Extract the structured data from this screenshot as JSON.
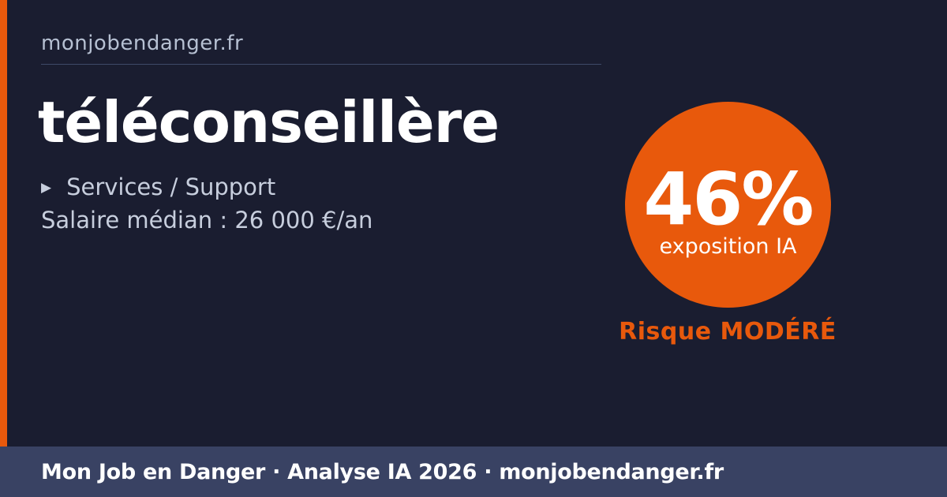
{
  "card": {
    "site_domain": "monjobendanger.fr",
    "job": {
      "title": "téléconseillère",
      "category": "Services / Support",
      "salary_line": "Salaire médian : 26 000 €/an"
    },
    "exposure": {
      "percent": "46%",
      "label": "exposition IA",
      "risk_label": "Risque MODÉRÉ"
    },
    "footer_text": "Mon Job en Danger · Analyse IA 2026 · monjobendanger.fr",
    "icons": {
      "category_bullet_char": "▶",
      "category_bullet_name": "triangle-right-icon"
    },
    "colors": {
      "background": "#1a1d30",
      "accent_orange": "#e8590c",
      "footer_background": "#394263",
      "text_muted": "#c7cedd",
      "text_dim": "#b6c0d2",
      "divider": "#3e4a68",
      "text_white": "#ffffff"
    }
  }
}
